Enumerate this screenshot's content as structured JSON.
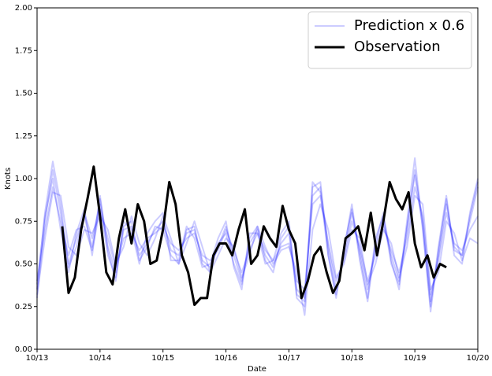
{
  "chart_data": {
    "type": "line",
    "xlabel": "Date",
    "ylabel": "Knots",
    "xlim": [
      0,
      7
    ],
    "ylim": [
      0,
      2
    ],
    "xticks": [
      {
        "value": 0,
        "label": "10/13"
      },
      {
        "value": 1,
        "label": "10/14"
      },
      {
        "value": 2,
        "label": "10/15"
      },
      {
        "value": 3,
        "label": "10/16"
      },
      {
        "value": 4,
        "label": "10/17"
      },
      {
        "value": 5,
        "label": "10/18"
      },
      {
        "value": 6,
        "label": "10/19"
      },
      {
        "value": 7,
        "label": "10/20"
      }
    ],
    "yticks": [
      {
        "value": 0,
        "label": "0.00"
      },
      {
        "value": 0.25,
        "label": "0.25"
      },
      {
        "value": 0.5,
        "label": "0.50"
      },
      {
        "value": 0.75,
        "label": "0.75"
      },
      {
        "value": 1,
        "label": "1.00"
      },
      {
        "value": 1.25,
        "label": "1.25"
      },
      {
        "value": 1.5,
        "label": "1.50"
      },
      {
        "value": 1.75,
        "label": "1.75"
      },
      {
        "value": 2,
        "label": "2.00"
      }
    ],
    "legend": "upper right",
    "x": [
      0,
      0.125,
      0.25,
      0.375,
      0.5,
      0.625,
      0.75,
      0.875,
      1,
      1.125,
      1.25,
      1.375,
      1.5,
      1.625,
      1.75,
      1.875,
      2,
      2.125,
      2.25,
      2.375,
      2.5,
      2.625,
      2.75,
      2.875,
      3,
      3.125,
      3.25,
      3.375,
      3.5,
      3.625,
      3.75,
      3.875,
      4,
      4.125,
      4.25,
      4.375,
      4.5,
      4.625,
      4.75,
      4.875,
      5,
      5.125,
      5.25,
      5.375,
      5.5,
      5.625,
      5.75,
      5.875,
      6,
      6.125,
      6.25,
      6.375,
      6.5,
      6.625,
      6.75,
      6.875,
      7
    ],
    "series": [
      {
        "name": "Prediction x 0.6",
        "color": "#0000ff",
        "alpha": 0.2,
        "values": [
          0.3,
          0.75,
          1.05,
          0.8,
          0.5,
          0.65,
          0.78,
          0.6,
          0.88,
          0.6,
          0.45,
          0.7,
          0.72,
          0.55,
          0.62,
          0.7,
          0.75,
          0.58,
          0.55,
          0.68,
          0.7,
          0.52,
          0.48,
          0.6,
          0.72,
          0.55,
          0.4,
          0.62,
          0.7,
          0.55,
          0.48,
          0.62,
          0.68,
          0.35,
          0.3,
          0.9,
          0.95,
          0.6,
          0.35,
          0.55,
          0.8,
          0.58,
          0.35,
          0.6,
          0.75,
          0.55,
          0.4,
          0.7,
          1.05,
          0.75,
          0.28,
          0.55,
          0.85,
          0.6,
          0.55,
          0.75,
          0.95
        ]
      },
      {
        "color": "#0000ff",
        "alpha": 0.2,
        "values": [
          0.35,
          0.8,
          1.1,
          0.85,
          0.48,
          0.6,
          0.8,
          0.65,
          0.85,
          0.55,
          0.42,
          0.72,
          0.75,
          0.52,
          0.6,
          0.72,
          0.7,
          0.55,
          0.5,
          0.7,
          0.72,
          0.5,
          0.45,
          0.62,
          0.68,
          0.5,
          0.38,
          0.65,
          0.72,
          0.52,
          0.45,
          0.65,
          0.72,
          0.3,
          0.25,
          0.95,
          0.98,
          0.55,
          0.3,
          0.6,
          0.82,
          0.55,
          0.3,
          0.65,
          0.78,
          0.5,
          0.38,
          0.75,
          1.12,
          0.7,
          0.25,
          0.6,
          0.9,
          0.55,
          0.5,
          0.8,
          1.0
        ]
      },
      {
        "color": "#0000ff",
        "alpha": 0.2,
        "values": [
          0.4,
          0.7,
          0.95,
          0.75,
          0.55,
          0.7,
          0.72,
          0.58,
          0.82,
          0.65,
          0.48,
          0.65,
          0.68,
          0.58,
          0.65,
          0.68,
          0.72,
          0.62,
          0.58,
          0.65,
          0.68,
          0.55,
          0.52,
          0.58,
          0.7,
          0.58,
          0.45,
          0.58,
          0.68,
          0.58,
          0.52,
          0.6,
          0.62,
          0.4,
          0.35,
          0.85,
          0.9,
          0.62,
          0.4,
          0.52,
          0.75,
          0.6,
          0.4,
          0.55,
          0.72,
          0.58,
          0.45,
          0.65,
          0.95,
          0.78,
          0.32,
          0.52,
          0.8,
          0.62,
          0.58,
          0.7,
          0.78
        ]
      },
      {
        "color": "#0000ff",
        "alpha": 0.2,
        "values": [
          0.32,
          0.65,
          0.92,
          0.9,
          0.6,
          0.55,
          0.7,
          0.68,
          0.78,
          0.7,
          0.5,
          0.6,
          0.78,
          0.62,
          0.55,
          0.65,
          0.78,
          0.65,
          0.5,
          0.62,
          0.75,
          0.6,
          0.45,
          0.55,
          0.65,
          0.6,
          0.42,
          0.55,
          0.72,
          0.6,
          0.5,
          0.58,
          0.6,
          0.45,
          0.2,
          0.7,
          0.85,
          0.7,
          0.42,
          0.5,
          0.7,
          0.65,
          0.38,
          0.5,
          0.7,
          0.62,
          0.42,
          0.6,
          0.9,
          0.85,
          0.35,
          0.45,
          0.75,
          0.68,
          0.52,
          0.65,
          0.62
        ]
      },
      {
        "color": "#0000ff",
        "alpha": 0.2,
        "values": [
          0.38,
          0.78,
          1.0,
          0.7,
          0.45,
          0.68,
          0.82,
          0.55,
          0.9,
          0.58,
          0.4,
          0.75,
          0.7,
          0.5,
          0.68,
          0.75,
          0.8,
          0.52,
          0.52,
          0.72,
          0.65,
          0.48,
          0.5,
          0.65,
          0.75,
          0.48,
          0.35,
          0.68,
          0.68,
          0.5,
          0.52,
          0.68,
          0.75,
          0.32,
          0.28,
          0.98,
          0.92,
          0.55,
          0.32,
          0.58,
          0.85,
          0.52,
          0.28,
          0.62,
          0.8,
          0.52,
          0.35,
          0.72,
          1.02,
          0.72,
          0.22,
          0.58,
          0.88,
          0.58,
          0.55,
          0.78,
          0.98
        ]
      },
      {
        "name": "Observation",
        "color": "#000000",
        "alpha": 1,
        "x": [
          0.4,
          0.5,
          0.6,
          0.7,
          0.8,
          0.9,
          1.0,
          1.1,
          1.2,
          1.3,
          1.4,
          1.5,
          1.6,
          1.7,
          1.8,
          1.9,
          2.0,
          2.1,
          2.2,
          2.3,
          2.4,
          2.5,
          2.6,
          2.7,
          2.8,
          2.9,
          3.0,
          3.1,
          3.2,
          3.3,
          3.4,
          3.5,
          3.6,
          3.7,
          3.8,
          3.9,
          4.0,
          4.1,
          4.2,
          4.3,
          4.4,
          4.5,
          4.6,
          4.7,
          4.8,
          4.9,
          5.0,
          5.1,
          5.2,
          5.3,
          5.4,
          5.5,
          5.6,
          5.7,
          5.8,
          5.9,
          6.0,
          6.1,
          6.2,
          6.3,
          6.4,
          6.5
        ],
        "values": [
          0.72,
          0.33,
          0.42,
          0.7,
          0.88,
          1.07,
          0.78,
          0.45,
          0.38,
          0.65,
          0.82,
          0.62,
          0.85,
          0.75,
          0.5,
          0.52,
          0.7,
          0.98,
          0.85,
          0.55,
          0.45,
          0.26,
          0.3,
          0.3,
          0.55,
          0.62,
          0.62,
          0.55,
          0.7,
          0.82,
          0.5,
          0.55,
          0.72,
          0.65,
          0.6,
          0.84,
          0.7,
          0.62,
          0.3,
          0.4,
          0.55,
          0.6,
          0.45,
          0.33,
          0.4,
          0.65,
          0.68,
          0.72,
          0.58,
          0.8,
          0.55,
          0.75,
          0.98,
          0.88,
          0.82,
          0.92,
          0.62,
          0.48,
          0.55,
          0.42,
          0.5,
          0.48
        ]
      }
    ]
  }
}
